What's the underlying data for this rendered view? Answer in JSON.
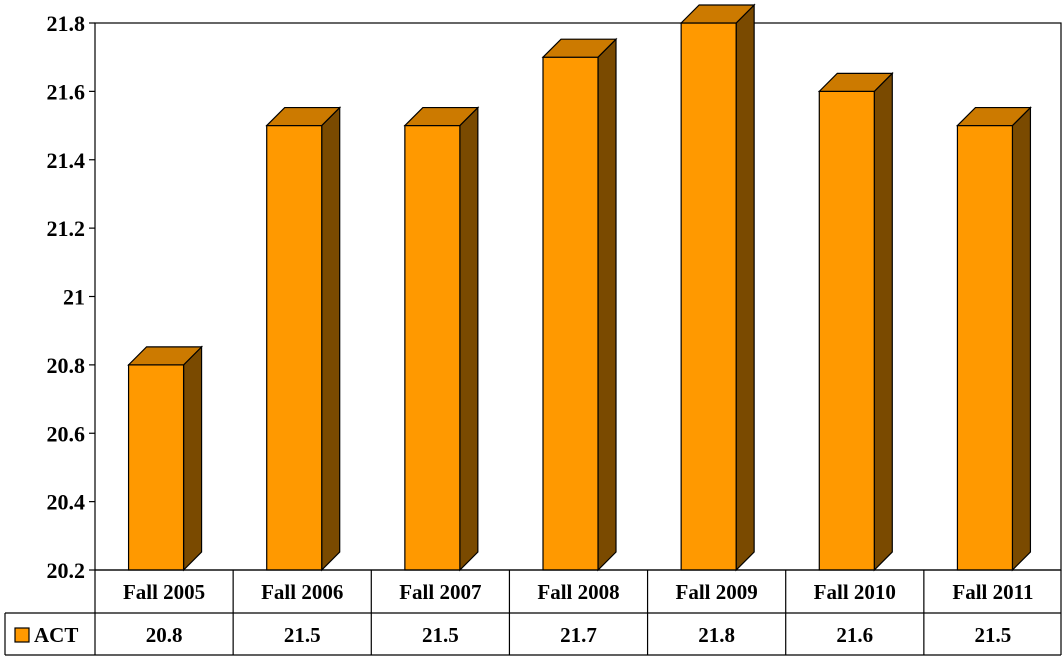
{
  "chart_data": {
    "type": "bar",
    "title": "",
    "xlabel": "",
    "ylabel": "",
    "ylim": [
      20.2,
      21.8
    ],
    "yticks": [
      20.2,
      20.4,
      20.6,
      20.8,
      21,
      21.2,
      21.4,
      21.6,
      21.8
    ],
    "categories": [
      "Fall 2005",
      "Fall 2006",
      "Fall 2007",
      "Fall 2008",
      "Fall 2009",
      "Fall 2010",
      "Fall 2011"
    ],
    "series": [
      {
        "name": "ACT",
        "values": [
          20.8,
          21.5,
          21.5,
          21.7,
          21.8,
          21.6,
          21.5
        ],
        "value_labels": [
          "20.8",
          "21.5",
          "21.5",
          "21.7",
          "21.8",
          "21.6",
          "21.5"
        ]
      }
    ],
    "grid": false,
    "legend": "data-table",
    "style": "3d-column",
    "colors": {
      "bar_front": "#ff9900",
      "bar_top": "#cc7a00",
      "bar_side": "#7a4a00",
      "outline": "#000000"
    }
  }
}
